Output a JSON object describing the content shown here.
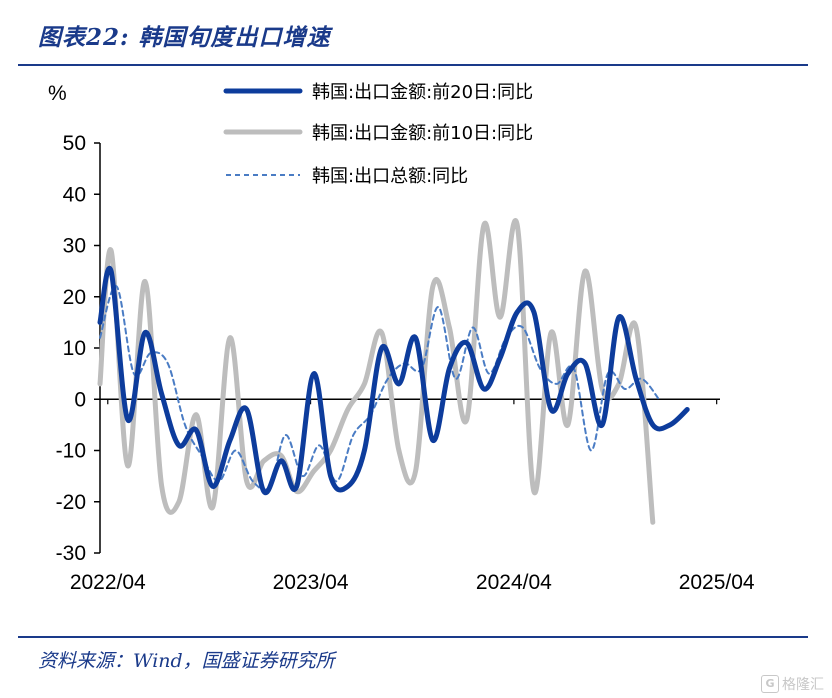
{
  "header": {
    "title": "图表22:  韩国旬度出口增速"
  },
  "footer": {
    "source": "资料来源：Wind，国盛证券研究所"
  },
  "watermark": {
    "text": "格隆汇"
  },
  "colors": {
    "brand": "#1a3a8a",
    "series1": "#0d3c9c",
    "series2": "#bdbdbd",
    "series3": "#4a7cc4"
  },
  "chart_data": {
    "type": "line",
    "ylabel": "%",
    "ylim": [
      -30,
      50
    ],
    "yticks": [
      50,
      40,
      30,
      20,
      10,
      0,
      -10,
      -20,
      -30
    ],
    "xlim": [
      "2022-04-01",
      "2025-04-21"
    ],
    "xtick_labels": [
      "2022/04",
      "2023/04",
      "2024/04",
      "2025/04"
    ],
    "xtick_dates": [
      "2022-04-15",
      "2023-04-15",
      "2024-04-15",
      "2025-04-15"
    ],
    "legend_position": "top",
    "series": [
      {
        "name": "韩国:出口金额:前20日:同比",
        "style": "solid-thick",
        "color": "#0d3c9c",
        "points": [
          [
            "2022-04-01",
            15
          ],
          [
            "2022-04-21",
            25
          ],
          [
            "2022-05-21",
            -4
          ],
          [
            "2022-06-21",
            13
          ],
          [
            "2022-07-21",
            1
          ],
          [
            "2022-08-21",
            -9
          ],
          [
            "2022-09-21",
            -6
          ],
          [
            "2022-10-21",
            -17
          ],
          [
            "2022-11-21",
            -8
          ],
          [
            "2022-12-21",
            -2
          ],
          [
            "2023-01-21",
            -18
          ],
          [
            "2023-02-21",
            -12
          ],
          [
            "2023-03-21",
            -17
          ],
          [
            "2023-04-21",
            5
          ],
          [
            "2023-05-21",
            -15
          ],
          [
            "2023-06-21",
            -17
          ],
          [
            "2023-07-21",
            -10
          ],
          [
            "2023-08-21",
            10
          ],
          [
            "2023-09-21",
            3
          ],
          [
            "2023-10-21",
            12
          ],
          [
            "2023-11-21",
            -8
          ],
          [
            "2023-12-21",
            6
          ],
          [
            "2024-01-21",
            11
          ],
          [
            "2024-02-21",
            2
          ],
          [
            "2024-03-21",
            8
          ],
          [
            "2024-04-21",
            17
          ],
          [
            "2024-05-21",
            17
          ],
          [
            "2024-06-21",
            -2
          ],
          [
            "2024-07-21",
            5
          ],
          [
            "2024-08-21",
            7
          ],
          [
            "2024-09-21",
            -5
          ],
          [
            "2024-10-21",
            16
          ],
          [
            "2024-11-21",
            4
          ],
          [
            "2024-12-21",
            -5
          ],
          [
            "2025-01-21",
            -5
          ],
          [
            "2025-02-21",
            -2
          ]
        ]
      },
      {
        "name": "韩国:出口金额:前10日:同比",
        "style": "solid-thick",
        "color": "#bdbdbd",
        "points": [
          [
            "2022-04-01",
            3
          ],
          [
            "2022-04-21",
            29
          ],
          [
            "2022-05-21",
            -13
          ],
          [
            "2022-06-21",
            23
          ],
          [
            "2022-07-21",
            -17
          ],
          [
            "2022-08-21",
            -20
          ],
          [
            "2022-09-21",
            -3
          ],
          [
            "2022-10-21",
            -21
          ],
          [
            "2022-11-21",
            12
          ],
          [
            "2022-12-21",
            -16
          ],
          [
            "2023-01-21",
            -12
          ],
          [
            "2023-02-21",
            -11
          ],
          [
            "2023-03-21",
            -18
          ],
          [
            "2023-04-21",
            -14
          ],
          [
            "2023-05-21",
            -10
          ],
          [
            "2023-06-21",
            -2
          ],
          [
            "2023-07-21",
            3
          ],
          [
            "2023-08-21",
            13
          ],
          [
            "2023-09-21",
            -10
          ],
          [
            "2023-10-21",
            -14
          ],
          [
            "2023-11-21",
            22
          ],
          [
            "2023-12-21",
            14
          ],
          [
            "2024-01-21",
            -4
          ],
          [
            "2024-02-21",
            34
          ],
          [
            "2024-03-21",
            16
          ],
          [
            "2024-04-21",
            34
          ],
          [
            "2024-05-21",
            -18
          ],
          [
            "2024-06-21",
            13
          ],
          [
            "2024-07-21",
            -5
          ],
          [
            "2024-08-21",
            25
          ],
          [
            "2024-09-21",
            2
          ],
          [
            "2024-10-21",
            3
          ],
          [
            "2024-11-21",
            14
          ],
          [
            "2024-12-21",
            -24
          ]
        ]
      },
      {
        "name": "韩国:出口总额:同比",
        "style": "dashed",
        "color": "#4a7cc4",
        "points": [
          [
            "2022-04-01",
            12
          ],
          [
            "2022-05-01",
            22
          ],
          [
            "2022-06-01",
            5
          ],
          [
            "2022-07-01",
            9
          ],
          [
            "2022-08-01",
            7
          ],
          [
            "2022-09-01",
            -5
          ],
          [
            "2022-10-01",
            -11
          ],
          [
            "2022-11-01",
            -16
          ],
          [
            "2022-12-01",
            -10
          ],
          [
            "2023-01-01",
            -16
          ],
          [
            "2023-02-01",
            -17
          ],
          [
            "2023-03-01",
            -7
          ],
          [
            "2023-04-01",
            -15
          ],
          [
            "2023-05-01",
            -9
          ],
          [
            "2023-06-01",
            -16
          ],
          [
            "2023-07-01",
            -7
          ],
          [
            "2023-08-01",
            -3
          ],
          [
            "2023-09-01",
            4
          ],
          [
            "2023-10-01",
            7
          ],
          [
            "2023-11-01",
            6
          ],
          [
            "2023-12-01",
            18
          ],
          [
            "2024-01-01",
            4
          ],
          [
            "2024-02-01",
            14
          ],
          [
            "2024-03-01",
            5
          ],
          [
            "2024-04-01",
            12
          ],
          [
            "2024-05-01",
            14
          ],
          [
            "2024-06-01",
            6
          ],
          [
            "2024-07-01",
            3
          ],
          [
            "2024-08-01",
            6
          ],
          [
            "2024-09-01",
            -10
          ],
          [
            "2024-10-01",
            5
          ],
          [
            "2024-11-01",
            2
          ],
          [
            "2024-12-01",
            4
          ],
          [
            "2025-01-01",
            0
          ]
        ]
      }
    ]
  }
}
